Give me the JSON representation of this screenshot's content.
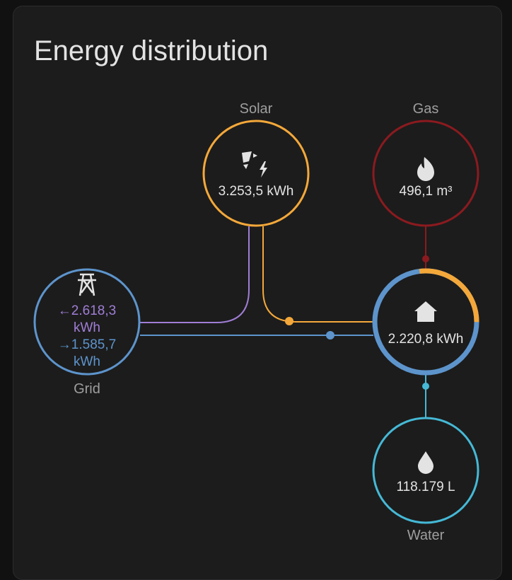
{
  "card": {
    "title": "Energy distribution"
  },
  "solar": {
    "label": "Solar",
    "value": "3.253,5 kWh",
    "color": "#f4a83a"
  },
  "gas": {
    "label": "Gas",
    "value": "496,1 m³",
    "color": "#8b1a1f"
  },
  "grid": {
    "label": "Grid",
    "from_grid": "←2.618,3",
    "from_grid_unit": "kWh",
    "to_grid": "→1.585,7",
    "to_grid_unit": "kWh",
    "color": "#5d94cc",
    "return_color": "#a07ed6"
  },
  "home": {
    "value": "2.220,8 kWh",
    "solar_share": 0.27
  },
  "water": {
    "label": "Water",
    "value": "118.179 L",
    "color": "#45b9d6"
  }
}
